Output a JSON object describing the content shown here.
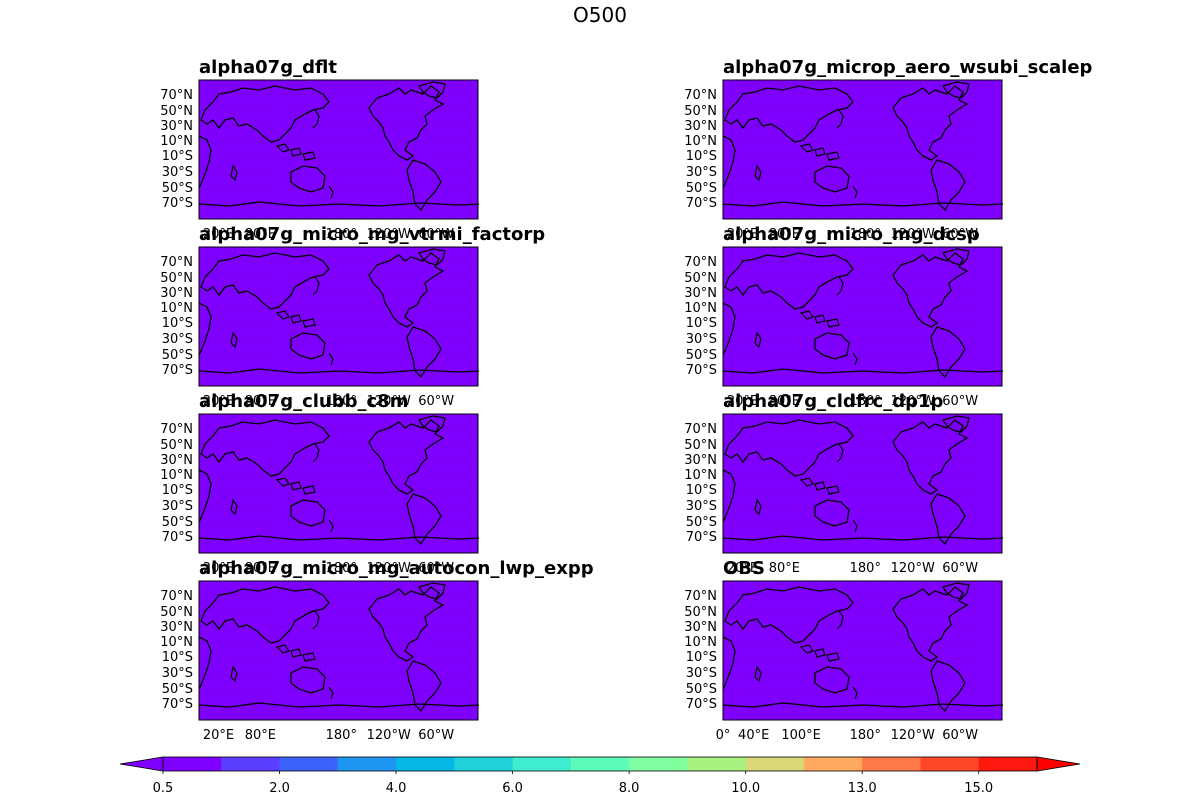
{
  "chart_data": {
    "type": "map",
    "title": "O500",
    "panels": [
      {
        "title": "alpha07g_dflt",
        "x_ticks": [
          "20°E",
          "80°E",
          "180°",
          "120°W",
          "60°W"
        ],
        "field_value": 0.5
      },
      {
        "title": "alpha07g_microp_aero_wsubi_scalep",
        "x_ticks": [
          "20°E",
          "80°E",
          "180°",
          "120°W",
          "60°W"
        ],
        "field_value": 0.5
      },
      {
        "title": "alpha07g_micro_mg_vtrmi_factorp",
        "x_ticks": [
          "20°E",
          "80°E",
          "180°",
          "120°W",
          "60°W"
        ],
        "field_value": 0.5
      },
      {
        "title": "alpha07g_micro_mg_dcsp",
        "x_ticks": [
          "20°E",
          "80°E",
          "180°",
          "120°W",
          "60°W"
        ],
        "field_value": 0.5
      },
      {
        "title": "alpha07g_clubb_c8m",
        "x_ticks": [
          "20°E",
          "80°E",
          "180°",
          "120°W",
          "60°W"
        ],
        "field_value": 0.5
      },
      {
        "title": "alpha07g_cldfrc_dp1p",
        "x_ticks": [
          "20°E",
          "80°E",
          "180°",
          "120°W",
          "60°W"
        ],
        "field_value": 0.5
      },
      {
        "title": "alpha07g_micro_mg_autocon_lwp_expp",
        "x_ticks": [
          "20°E",
          "80°E",
          "180°",
          "120°W",
          "60°W"
        ],
        "field_value": 0.5
      },
      {
        "title": "OBS",
        "x_ticks": [
          "0°",
          "40°E",
          "100°E",
          "180°",
          "120°W",
          "60°W"
        ],
        "field_value": 0.5
      }
    ],
    "y_ticks": [
      "70°N",
      "50°N",
      "30°N",
      "10°N",
      "10°S",
      "30°S",
      "50°S",
      "70°S"
    ],
    "colorbar": {
      "levels": [
        0.5,
        1.0,
        2.0,
        3.0,
        4.0,
        5.0,
        6.0,
        7.0,
        8.0,
        9.0,
        10.0,
        11.5,
        13.0,
        14.0,
        15.0,
        16.0
      ],
      "tick_labels": [
        {
          "value": 0.5,
          "label": "0.5"
        },
        {
          "value": 2.0,
          "label": "2.0"
        },
        {
          "value": 4.0,
          "label": "4.0"
        },
        {
          "value": 6.0,
          "label": "6.0"
        },
        {
          "value": 8.0,
          "label": "8.0"
        },
        {
          "value": 10.0,
          "label": "10.0"
        },
        {
          "value": 13.0,
          "label": "13.0"
        },
        {
          "value": 15.0,
          "label": "15.0"
        }
      ],
      "colors": [
        "#8000ff",
        "#5a40fe",
        "#3c64fa",
        "#1e96f2",
        "#04b9e8",
        "#20d2dc",
        "#40ecd0",
        "#5cfcb8",
        "#80ffa0",
        "#a8f080",
        "#d8d878",
        "#ffa860",
        "#ff7848",
        "#ff4828",
        "#ff1810"
      ],
      "under_color": "#8000ff",
      "over_color": "#ff0000",
      "extend": "both"
    },
    "land_outline_color": "#000000",
    "grid_color": "#6a00d8"
  }
}
